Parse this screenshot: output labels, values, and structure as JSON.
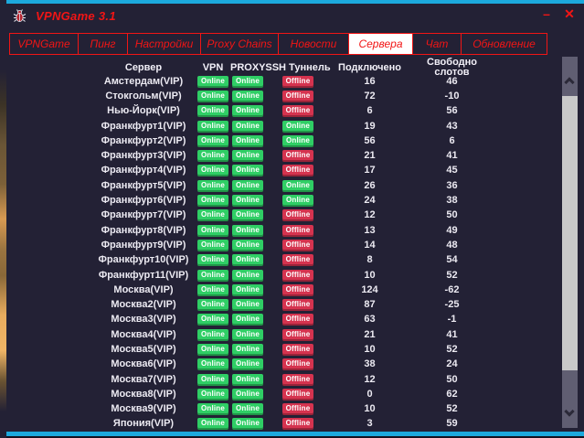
{
  "window": {
    "title": "VPNGame 3.1",
    "minimize_label": "–",
    "close_label": "✕"
  },
  "icons": {
    "app": "bug-icon",
    "scrollbar_up": "chevron-up",
    "scrollbar_down": "chevron-down"
  },
  "colors": {
    "background": "#232135",
    "accent_red": "#f21515",
    "frame_cyan": "#1ca9dd",
    "badge_online_green": "#2fce65",
    "badge_offline_red": "#d5334f",
    "active_tab_background": "#ffffff",
    "text_white": "#eceaf2"
  },
  "tabs": [
    {
      "label": "VPNGame",
      "active": false
    },
    {
      "label": "Пинг",
      "active": false
    },
    {
      "label": "Настройки",
      "active": false
    },
    {
      "label": "Proxy Chains",
      "active": false
    },
    {
      "label": "Новости",
      "active": false
    },
    {
      "label": "Сервера",
      "active": true
    },
    {
      "label": "Чат",
      "active": false
    },
    {
      "label": "Обновление",
      "active": false
    }
  ],
  "table": {
    "columns": [
      "Сервер",
      "VPN",
      "PROXY",
      "SSH Туннель",
      "Подключено",
      "Свободно слотов"
    ],
    "rows": [
      {
        "server": "Амстердам(VIP)",
        "vpn": "Online",
        "proxy": "Online",
        "ssh": "Offline",
        "connected": "16",
        "free_slots": "46"
      },
      {
        "server": "Стокгольм(VIP)",
        "vpn": "Online",
        "proxy": "Online",
        "ssh": "Offline",
        "connected": "72",
        "free_slots": "-10"
      },
      {
        "server": "Нью-Йорк(VIP)",
        "vpn": "Online",
        "proxy": "Online",
        "ssh": "Offline",
        "connected": "6",
        "free_slots": "56"
      },
      {
        "server": "Франкфурт1(VIP)",
        "vpn": "Online",
        "proxy": "Online",
        "ssh": "Online",
        "connected": "19",
        "free_slots": "43"
      },
      {
        "server": "Франкфурт2(VIP)",
        "vpn": "Online",
        "proxy": "Online",
        "ssh": "Online",
        "connected": "56",
        "free_slots": "6"
      },
      {
        "server": "Франкфурт3(VIP)",
        "vpn": "Online",
        "proxy": "Online",
        "ssh": "Offline",
        "connected": "21",
        "free_slots": "41"
      },
      {
        "server": "Франкфурт4(VIP)",
        "vpn": "Online",
        "proxy": "Online",
        "ssh": "Offline",
        "connected": "17",
        "free_slots": "45"
      },
      {
        "server": "Франкфурт5(VIP)",
        "vpn": "Online",
        "proxy": "Online",
        "ssh": "Online",
        "connected": "26",
        "free_slots": "36"
      },
      {
        "server": "Франкфурт6(VIP)",
        "vpn": "Online",
        "proxy": "Online",
        "ssh": "Online",
        "connected": "24",
        "free_slots": "38"
      },
      {
        "server": "Франкфурт7(VIP)",
        "vpn": "Online",
        "proxy": "Online",
        "ssh": "Offline",
        "connected": "12",
        "free_slots": "50"
      },
      {
        "server": "Франкфурт8(VIP)",
        "vpn": "Online",
        "proxy": "Online",
        "ssh": "Offline",
        "connected": "13",
        "free_slots": "49"
      },
      {
        "server": "Франкфурт9(VIP)",
        "vpn": "Online",
        "proxy": "Online",
        "ssh": "Offline",
        "connected": "14",
        "free_slots": "48"
      },
      {
        "server": "Франкфурт10(VIP)",
        "vpn": "Online",
        "proxy": "Online",
        "ssh": "Offline",
        "connected": "8",
        "free_slots": "54"
      },
      {
        "server": "Франкфурт11(VIP)",
        "vpn": "Online",
        "proxy": "Online",
        "ssh": "Offline",
        "connected": "10",
        "free_slots": "52"
      },
      {
        "server": "Москва(VIP)",
        "vpn": "Online",
        "proxy": "Online",
        "ssh": "Offline",
        "connected": "124",
        "free_slots": "-62"
      },
      {
        "server": "Москва2(VIP)",
        "vpn": "Online",
        "proxy": "Online",
        "ssh": "Offline",
        "connected": "87",
        "free_slots": "-25"
      },
      {
        "server": "Москва3(VIP)",
        "vpn": "Online",
        "proxy": "Online",
        "ssh": "Offline",
        "connected": "63",
        "free_slots": "-1"
      },
      {
        "server": "Москва4(VIP)",
        "vpn": "Online",
        "proxy": "Online",
        "ssh": "Offline",
        "connected": "21",
        "free_slots": "41"
      },
      {
        "server": "Москва5(VIP)",
        "vpn": "Online",
        "proxy": "Online",
        "ssh": "Offline",
        "connected": "10",
        "free_slots": "52"
      },
      {
        "server": "Москва6(VIP)",
        "vpn": "Online",
        "proxy": "Online",
        "ssh": "Offline",
        "connected": "38",
        "free_slots": "24"
      },
      {
        "server": "Москва7(VIP)",
        "vpn": "Online",
        "proxy": "Online",
        "ssh": "Offline",
        "connected": "12",
        "free_slots": "50"
      },
      {
        "server": "Москва8(VIP)",
        "vpn": "Online",
        "proxy": "Online",
        "ssh": "Offline",
        "connected": "0",
        "free_slots": "62"
      },
      {
        "server": "Москва9(VIP)",
        "vpn": "Online",
        "proxy": "Online",
        "ssh": "Offline",
        "connected": "10",
        "free_slots": "52"
      },
      {
        "server": "Япония(VIP)",
        "vpn": "Online",
        "proxy": "Online",
        "ssh": "Offline",
        "connected": "3",
        "free_slots": "59"
      }
    ]
  }
}
